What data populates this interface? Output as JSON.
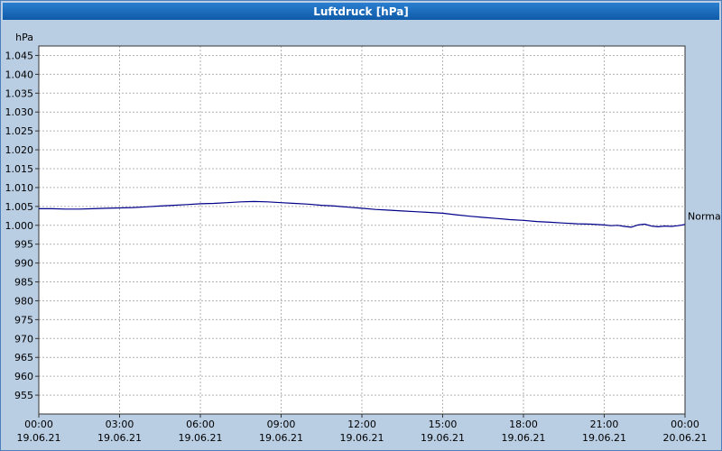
{
  "window": {
    "title": "Luftdruck [hPa]"
  },
  "colors": {
    "background": "#b9cde3",
    "titlebar": "#1568be",
    "titlebar_text": "#ffffff",
    "plot_bg": "#ffffff",
    "grid": "#b3b3b3",
    "axis": "#333333",
    "line": "#00008b",
    "text": "#000000",
    "border": "#4c7fbe"
  },
  "chart_data": {
    "type": "line",
    "title": "Luftdruck [hPa]",
    "ylabel": "hPa",
    "ylim": [
      950,
      1047.5
    ],
    "xlim_hours": [
      0,
      24
    ],
    "grid": true,
    "legend_position": "none",
    "y_ticks": [
      {
        "value": 1045,
        "label": "1.045"
      },
      {
        "value": 1040,
        "label": "1.040"
      },
      {
        "value": 1035,
        "label": "1.035"
      },
      {
        "value": 1030,
        "label": "1.030"
      },
      {
        "value": 1025,
        "label": "1.025"
      },
      {
        "value": 1020,
        "label": "1.020"
      },
      {
        "value": 1015,
        "label": "1.015"
      },
      {
        "value": 1010,
        "label": "1.010"
      },
      {
        "value": 1005,
        "label": "1.005"
      },
      {
        "value": 1000,
        "label": "1.000"
      },
      {
        "value": 995,
        "label": "995"
      },
      {
        "value": 990,
        "label": "990"
      },
      {
        "value": 985,
        "label": "985"
      },
      {
        "value": 980,
        "label": "980"
      },
      {
        "value": 975,
        "label": "975"
      },
      {
        "value": 970,
        "label": "970"
      },
      {
        "value": 965,
        "label": "965"
      },
      {
        "value": 960,
        "label": "960"
      },
      {
        "value": 955,
        "label": "955"
      }
    ],
    "x_ticks": [
      {
        "hour": 0,
        "time": "00:00",
        "date": "19.06.21"
      },
      {
        "hour": 3,
        "time": "03:00",
        "date": "19.06.21"
      },
      {
        "hour": 6,
        "time": "06:00",
        "date": "19.06.21"
      },
      {
        "hour": 9,
        "time": "09:00",
        "date": "19.06.21"
      },
      {
        "hour": 12,
        "time": "12:00",
        "date": "19.06.21"
      },
      {
        "hour": 15,
        "time": "15:00",
        "date": "19.06.21"
      },
      {
        "hour": 18,
        "time": "18:00",
        "date": "19.06.21"
      },
      {
        "hour": 21,
        "time": "21:00",
        "date": "19.06.21"
      },
      {
        "hour": 24,
        "time": "00:00",
        "date": "20.06.21"
      }
    ],
    "series": [
      {
        "name": "Luftdruck",
        "color": "#00008b",
        "points": [
          [
            0,
            1004.4
          ],
          [
            0.5,
            1004.4
          ],
          [
            1,
            1004.3
          ],
          [
            1.5,
            1004.3
          ],
          [
            2,
            1004.4
          ],
          [
            2.5,
            1004.5
          ],
          [
            3,
            1004.6
          ],
          [
            3.5,
            1004.7
          ],
          [
            4,
            1004.9
          ],
          [
            4.5,
            1005.1
          ],
          [
            5,
            1005.3
          ],
          [
            5.5,
            1005.5
          ],
          [
            6,
            1005.7
          ],
          [
            6.5,
            1005.8
          ],
          [
            7,
            1006.0
          ],
          [
            7.5,
            1006.2
          ],
          [
            8,
            1006.3
          ],
          [
            8.5,
            1006.2
          ],
          [
            9,
            1006.0
          ],
          [
            9.5,
            1005.8
          ],
          [
            10,
            1005.6
          ],
          [
            10.5,
            1005.3
          ],
          [
            11,
            1005.1
          ],
          [
            11.5,
            1004.8
          ],
          [
            12,
            1004.5
          ],
          [
            12.5,
            1004.2
          ],
          [
            13,
            1004.0
          ],
          [
            13.5,
            1003.8
          ],
          [
            14,
            1003.6
          ],
          [
            14.5,
            1003.4
          ],
          [
            15,
            1003.2
          ],
          [
            15.5,
            1002.8
          ],
          [
            16,
            1002.4
          ],
          [
            16.5,
            1002.1
          ],
          [
            17,
            1001.8
          ],
          [
            17.5,
            1001.5
          ],
          [
            18,
            1001.3
          ],
          [
            18.5,
            1001.0
          ],
          [
            19,
            1000.8
          ],
          [
            19.5,
            1000.6
          ],
          [
            20,
            1000.4
          ],
          [
            20.5,
            1000.3
          ],
          [
            21,
            1000.1
          ],
          [
            21.25,
            999.9
          ],
          [
            21.5,
            1000.0
          ],
          [
            21.75,
            999.7
          ],
          [
            22,
            999.5
          ],
          [
            22.25,
            1000.1
          ],
          [
            22.5,
            1000.3
          ],
          [
            22.75,
            999.8
          ],
          [
            23,
            999.6
          ],
          [
            23.25,
            999.8
          ],
          [
            23.5,
            999.7
          ],
          [
            23.75,
            999.9
          ],
          [
            24,
            1000.2
          ]
        ]
      }
    ],
    "annotations": [
      {
        "label": "Normal",
        "value": 1002.5,
        "position": "right"
      }
    ]
  }
}
